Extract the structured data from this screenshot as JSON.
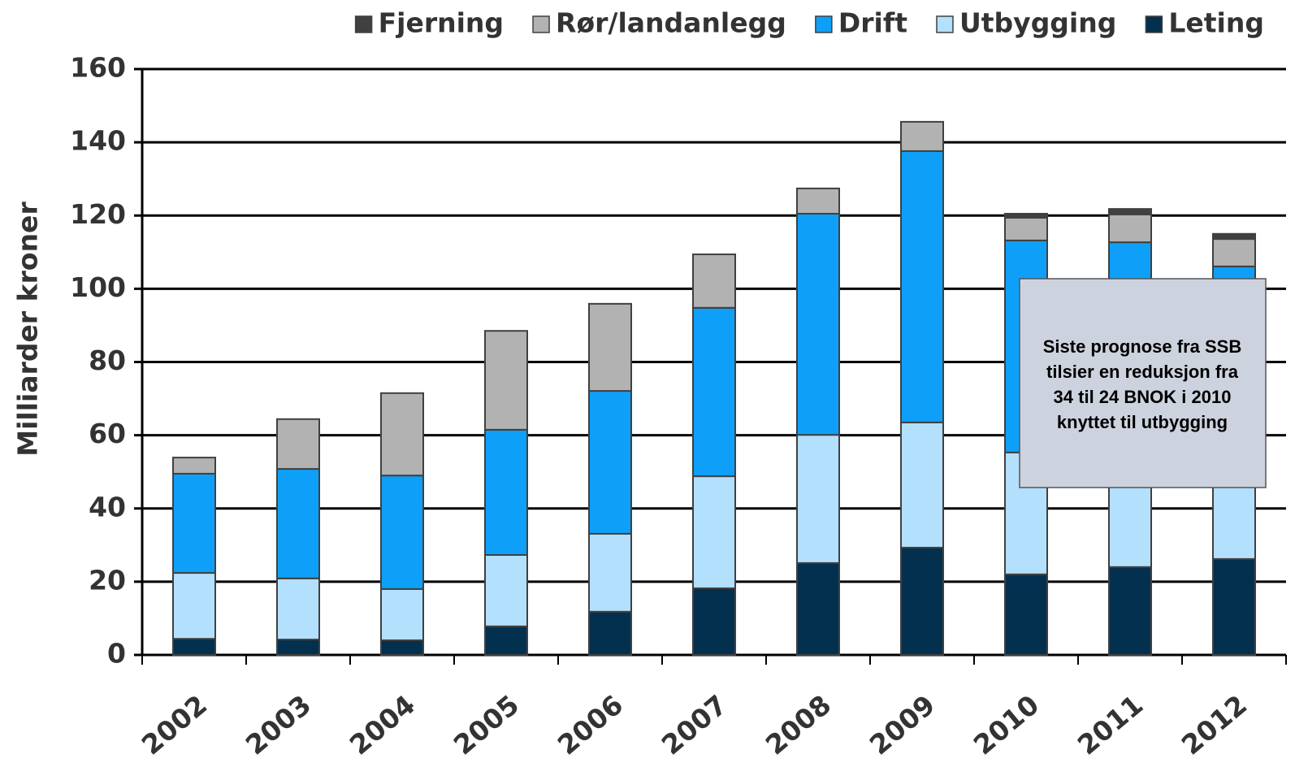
{
  "chart_data": {
    "type": "stacked_bar",
    "y_label": "Milliarder kroner",
    "categories": [
      "2002",
      "2003",
      "2004",
      "2005",
      "2006",
      "2007",
      "2008",
      "2009",
      "2010",
      "2011",
      "2012"
    ],
    "series": [
      {
        "name": "Leting",
        "color": "#04304f",
        "values": [
          4.4,
          4.2,
          4.0,
          7.8,
          11.8,
          18.2,
          25.1,
          29.3,
          22.0,
          24.0,
          26.2
        ]
      },
      {
        "name": "Utbygging",
        "color": "#b3e0fc",
        "values": [
          18.0,
          16.7,
          14.0,
          19.5,
          21.3,
          30.6,
          35.0,
          34.2,
          33.3,
          26.0,
          25.8
        ]
      },
      {
        "name": "Drift",
        "color": "#0ea0f8",
        "values": [
          27.1,
          29.9,
          31.0,
          34.2,
          39.0,
          46.0,
          60.4,
          74.1,
          57.9,
          62.7,
          54.1
        ]
      },
      {
        "name": "Rør/landanlegg",
        "color": "#b2b2b2",
        "values": [
          4.4,
          13.6,
          22.5,
          27.0,
          23.8,
          14.6,
          6.9,
          8.0,
          6.2,
          7.6,
          7.5
        ]
      },
      {
        "name": "Fjerning",
        "color": "#404040",
        "values": [
          0,
          0,
          0,
          0,
          0,
          0,
          0,
          0,
          1.1,
          1.5,
          1.4
        ]
      }
    ],
    "legend_order": [
      4,
      3,
      2,
      1,
      0
    ],
    "ylim": [
      0,
      160
    ],
    "yticks": [
      0,
      20,
      40,
      60,
      80,
      100,
      120,
      140,
      160
    ],
    "grid": true,
    "annotation": [
      "Siste prognose fra SSB",
      "tilsier en reduksjon fra",
      "34 til 24 BNOK i 2010",
      "knyttet til utbygging"
    ]
  }
}
